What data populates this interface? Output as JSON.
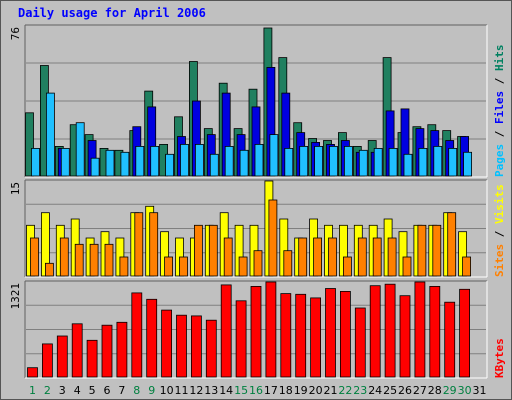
{
  "chart_data": {
    "title": "Daily usage for April 2006",
    "type": "bar",
    "categories": [
      "1",
      "2",
      "3",
      "4",
      "5",
      "6",
      "7",
      "8",
      "9",
      "10",
      "11",
      "12",
      "13",
      "14",
      "15",
      "16",
      "17",
      "18",
      "19",
      "20",
      "21",
      "22",
      "23",
      "24",
      "25",
      "26",
      "27",
      "28",
      "29",
      "30",
      "31"
    ],
    "weekend_days": [
      "1",
      "2",
      "8",
      "9",
      "15",
      "16",
      "22",
      "23",
      "29",
      "30"
    ],
    "panels": [
      {
        "name": "hits-files-pages",
        "ymax_label": "76",
        "ymax": 76,
        "right_labels": [
          {
            "text": "Pages",
            "color": "#00c0ff"
          },
          {
            "text": " / ",
            "color": "#000000"
          },
          {
            "text": "Files",
            "color": "#0000ff"
          },
          {
            "text": " / ",
            "color": "#000000"
          },
          {
            "text": "Hits",
            "color": "#008060"
          }
        ],
        "series": [
          {
            "name": "Hits",
            "color": "#208060",
            "values": [
              32,
              56,
              15,
              26,
              21,
              14,
              13,
              23,
              43,
              16,
              30,
              58,
              24,
              47,
              24,
              44,
              75,
              60,
              27,
              19,
              18,
              22,
              15,
              18,
              60,
              22,
              25,
              26,
              23,
              20,
              0
            ]
          },
          {
            "name": "Files",
            "color": "#0000e0",
            "values": [
              0,
              0,
              14,
              0,
              18,
              0,
              0,
              25,
              35,
              0,
              20,
              38,
              21,
              42,
              21,
              35,
              55,
              42,
              22,
              17,
              16,
              18,
              12,
              12,
              33,
              34,
              24,
              23,
              18,
              20,
              0
            ]
          },
          {
            "name": "Pages",
            "color": "#20c0ff",
            "values": [
              14,
              42,
              14,
              27,
              9,
              13,
              12,
              15,
              15,
              11,
              16,
              16,
              11,
              15,
              13,
              16,
              21,
              14,
              15,
              15,
              15,
              15,
              13,
              14,
              14,
              11,
              14,
              15,
              14,
              12,
              0
            ]
          }
        ]
      },
      {
        "name": "visits-sites",
        "ymax_label": "15",
        "ymax": 15,
        "right_labels": [
          {
            "text": "Sites",
            "color": "#ff8000"
          },
          {
            "text": " / ",
            "color": "#000000"
          },
          {
            "text": "Visits",
            "color": "#ffff00"
          }
        ],
        "series": [
          {
            "name": "Visits",
            "color": "#ffff00",
            "values": [
              8,
              10,
              8,
              9,
              6,
              7,
              6,
              10,
              11,
              7,
              6,
              6,
              8,
              10,
              8,
              8,
              15,
              9,
              6,
              9,
              8,
              8,
              8,
              8,
              9,
              7,
              8,
              8,
              10,
              7,
              0
            ]
          },
          {
            "name": "Sites",
            "color": "#ff8000",
            "values": [
              6,
              2,
              6,
              5,
              5,
              5,
              3,
              10,
              10,
              3,
              3,
              8,
              8,
              6,
              3,
              4,
              12,
              4,
              6,
              6,
              6,
              3,
              6,
              6,
              6,
              3,
              8,
              8,
              10,
              3,
              0
            ]
          }
        ]
      },
      {
        "name": "kbytes",
        "ymax_label": "1321",
        "ymax": 1321,
        "right_labels": [
          {
            "text": "KBytes",
            "color": "#ff0000"
          }
        ],
        "series": [
          {
            "name": "KBytes",
            "color": "#ff0000",
            "values": [
              130,
              460,
              570,
              740,
              510,
              720,
              760,
              1170,
              1080,
              930,
              860,
              850,
              790,
              1280,
              1060,
              1260,
              1321,
              1160,
              1150,
              1100,
              1230,
              1190,
              960,
              1270,
              1290,
              1130,
              1321,
              1260,
              1040,
              1220,
              0
            ]
          }
        ]
      }
    ]
  },
  "colors": {
    "frame_bg": "#c0c0c0",
    "plot_bg": "#c0c0c0",
    "title": "#0000ff",
    "weekday_tick": "#000000",
    "weekend_tick": "#008040",
    "grid": "#808080"
  }
}
